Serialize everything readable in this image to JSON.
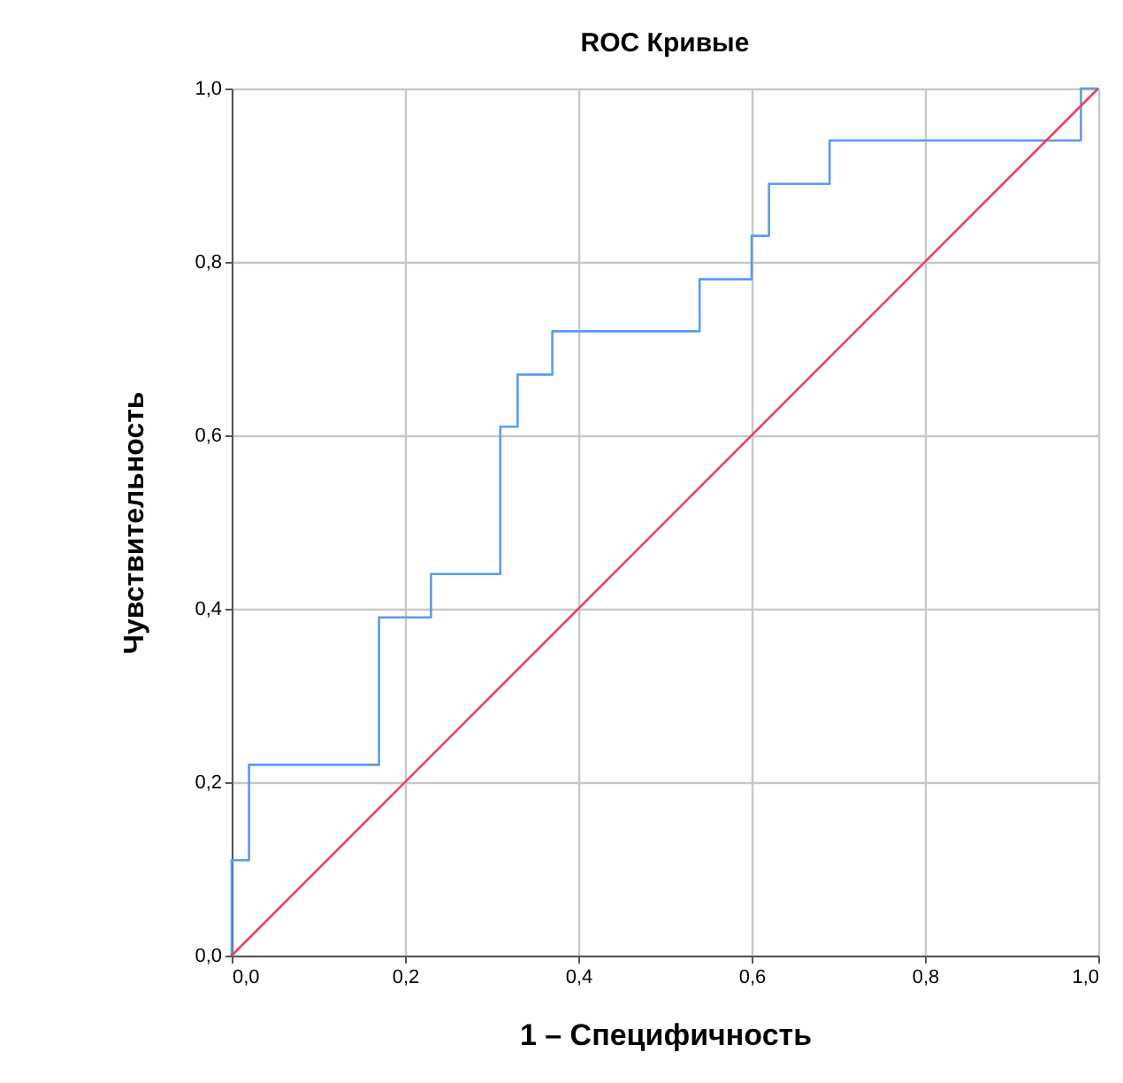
{
  "chart_data": {
    "type": "step",
    "title": "ROC Кривые",
    "xlabel": "1 – Специфичность",
    "ylabel": "Чувствительность",
    "series": [
      {
        "color": "#5b9bef",
        "x": [
          0,
          0,
          0.02,
          0.17,
          0.23,
          0.31,
          0.33,
          0.37,
          0.54,
          0.6,
          0.62,
          0.69,
          0.98,
          1
        ],
        "values": [
          0,
          0.11,
          0.22,
          0.39,
          0.44,
          0.61,
          0.67,
          0.72,
          0.78,
          0.83,
          0.89,
          0.94,
          1,
          1
        ]
      },
      {
        "type": "line",
        "color": "#e8415a",
        "x": [
          0,
          1
        ],
        "values": [
          0,
          1
        ]
      }
    ],
    "xlim": [
      0,
      1
    ],
    "ylim": [
      0,
      1
    ],
    "xticks": [
      {
        "value": 0,
        "label": "0,0"
      },
      {
        "value": 0.2,
        "label": "0,2"
      },
      {
        "value": 0.4,
        "label": "0,4"
      },
      {
        "value": 0.6,
        "label": "0,6"
      },
      {
        "value": 0.8,
        "label": "0,8"
      },
      {
        "value": 1,
        "label": "1,0"
      }
    ],
    "yticks": [
      {
        "value": 0,
        "label": "0,0"
      },
      {
        "value": 0.2,
        "label": "0,2"
      },
      {
        "value": 0.4,
        "label": "0,4"
      },
      {
        "value": 0.6,
        "label": "0,6"
      },
      {
        "value": 0.8,
        "label": "0,8"
      },
      {
        "value": 1,
        "label": "1,0"
      }
    ],
    "grid": true,
    "marker": "none",
    "line_style": "solid"
  }
}
